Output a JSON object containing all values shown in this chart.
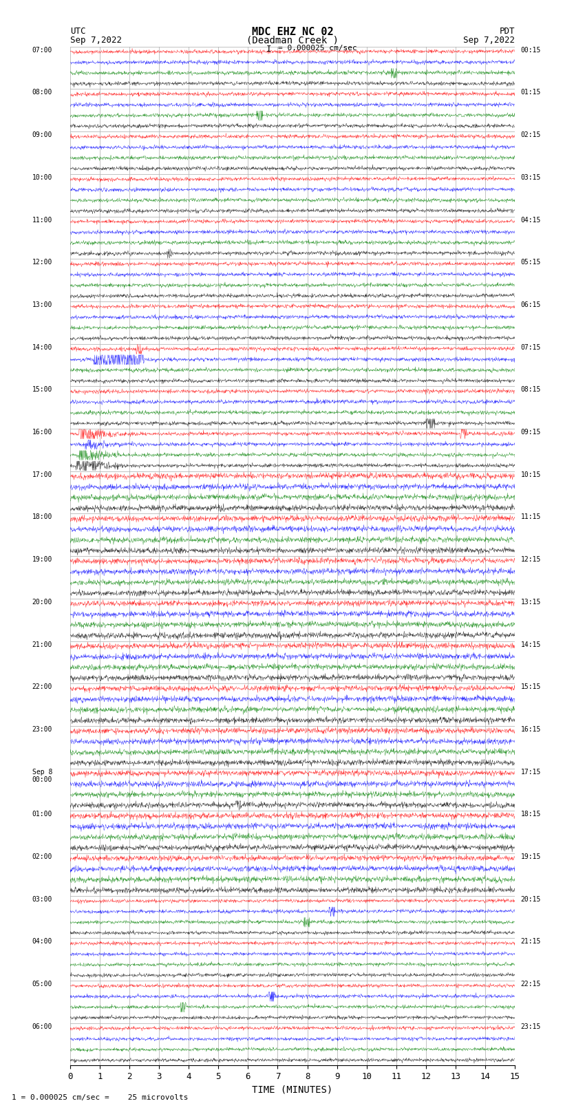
{
  "title_line1": "MDC EHZ NC 02",
  "title_line2": "(Deadman Creek )",
  "scale_label": "I = 0.000025 cm/sec",
  "utc_label": "UTC",
  "utc_date": "Sep 7,2022",
  "pdt_label": "PDT",
  "pdt_date": "Sep 7,2022",
  "xlabel": "TIME (MINUTES)",
  "bottom_label": "1 = 0.000025 cm/sec =    25 microvolts",
  "xlim": [
    0,
    15
  ],
  "xticks": [
    0,
    1,
    2,
    3,
    4,
    5,
    6,
    7,
    8,
    9,
    10,
    11,
    12,
    13,
    14,
    15
  ],
  "bg_color": "#ffffff",
  "grid_color": "#aaaaaa",
  "trace_colors": [
    "red",
    "blue",
    "green",
    "black"
  ],
  "left_times_utc": [
    "07:00",
    "08:00",
    "09:00",
    "10:00",
    "11:00",
    "12:00",
    "13:00",
    "14:00",
    "15:00",
    "16:00",
    "17:00",
    "18:00",
    "19:00",
    "20:00",
    "21:00",
    "22:00",
    "23:00",
    "Sep 8\n00:00",
    "01:00",
    "02:00",
    "03:00",
    "04:00",
    "05:00",
    "06:00"
  ],
  "right_times_pdt": [
    "00:15",
    "01:15",
    "02:15",
    "03:15",
    "04:15",
    "05:15",
    "06:15",
    "07:15",
    "08:15",
    "09:15",
    "10:15",
    "11:15",
    "12:15",
    "13:15",
    "14:15",
    "15:15",
    "16:15",
    "17:15",
    "18:15",
    "19:15",
    "20:15",
    "21:15",
    "22:15",
    "23:15"
  ],
  "n_rows": 24,
  "n_sub_rows": 4,
  "noise_seed": 42
}
